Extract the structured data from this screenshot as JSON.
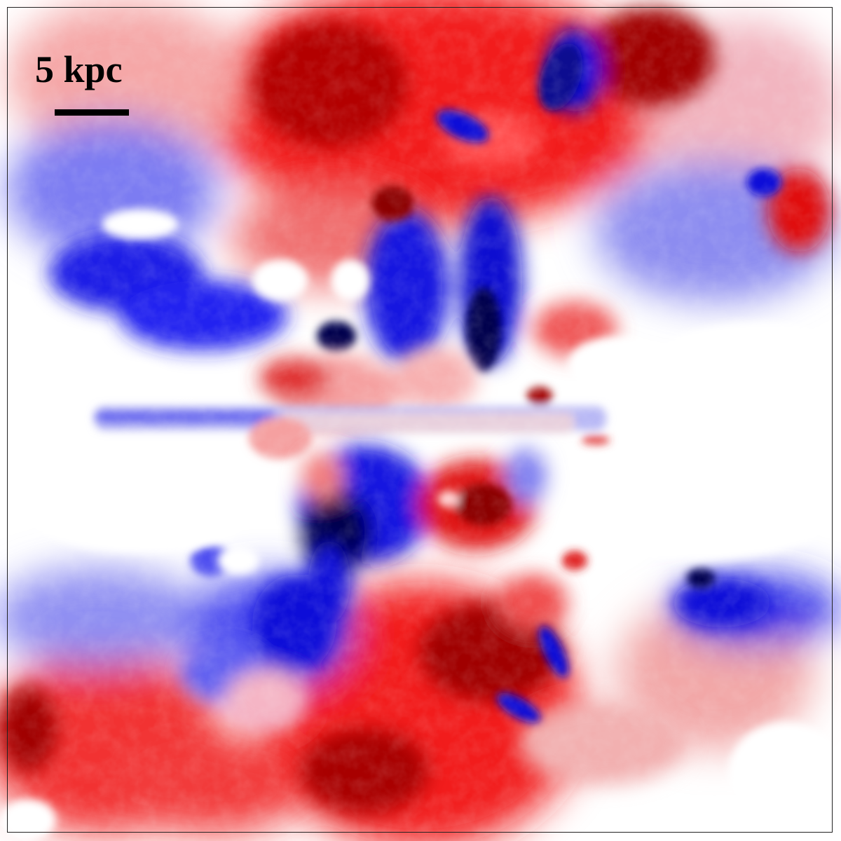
{
  "figure": {
    "scale_bar": {
      "label": "5 kpc"
    },
    "colormap": {
      "positive": "#e41a1c",
      "positive_deep": "#8b0000",
      "negative": "#1a1aff",
      "negative_deep": "#00004d",
      "neutral": "#ffffff"
    }
  }
}
